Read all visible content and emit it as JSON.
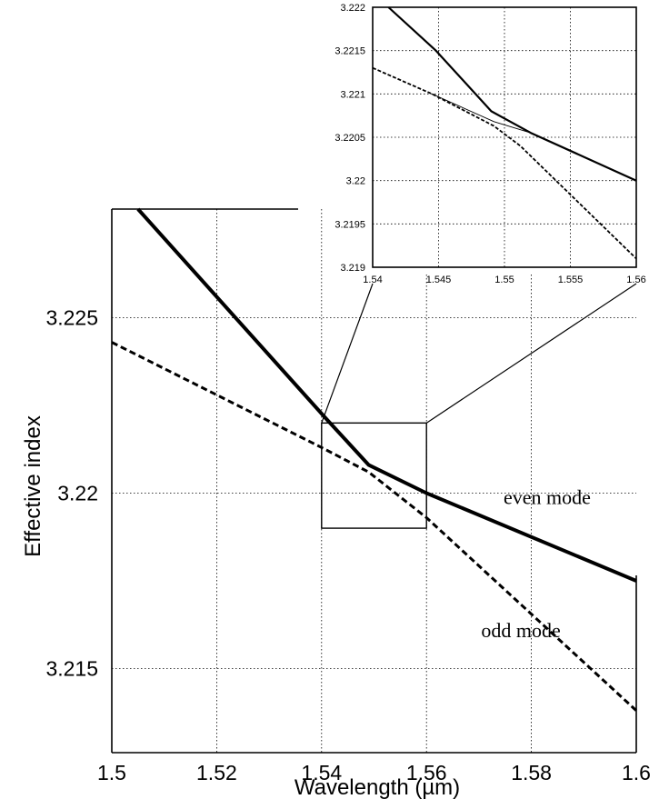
{
  "chart_data": [
    {
      "type": "line",
      "title": "",
      "xlabel": "Wavelength (µm)",
      "ylabel": "Effective index",
      "xlim": [
        1.5,
        1.6
      ],
      "ylim": [
        3.2126,
        3.2281
      ],
      "x_ticks": [
        "1.5",
        "1.52",
        "1.54",
        "1.56",
        "1.58",
        "1.6"
      ],
      "y_ticks": [
        "3.215",
        "3.22",
        "3.225"
      ],
      "grid": true,
      "series": [
        {
          "name": "even mode",
          "style": "solid",
          "color": "#000000",
          "x": [
            1.505,
            1.541,
            1.549,
            1.56,
            1.6
          ],
          "y": [
            3.2281,
            3.2221,
            3.2208,
            3.22,
            3.2175
          ]
        },
        {
          "name": "odd mode",
          "style": "dashed",
          "color": "#000000",
          "x": [
            1.5,
            1.54,
            1.549,
            1.56,
            1.6
          ],
          "y": [
            3.2243,
            3.2213,
            3.2206,
            3.2193,
            3.2138
          ]
        }
      ],
      "annotations": [
        {
          "text": "even mode",
          "x": 1.583,
          "y": 3.2199
        },
        {
          "text": "odd mode",
          "x": 1.578,
          "y": 3.2161
        }
      ],
      "zoom_box": {
        "x": [
          1.54,
          1.56
        ],
        "y": [
          3.219,
          3.222
        ]
      }
    },
    {
      "type": "line",
      "title": "",
      "xlabel": "",
      "ylabel": "",
      "xlim": [
        1.54,
        1.56
      ],
      "ylim": [
        3.219,
        3.222
      ],
      "x_ticks": [
        "1.54",
        "1.545",
        "1.55",
        "1.555",
        "1.56"
      ],
      "y_ticks": [
        "3.219",
        "3.2195",
        "3.22",
        "3.2205",
        "3.221",
        "3.2215",
        "3.222"
      ],
      "grid": true,
      "series": [
        {
          "name": "even mode",
          "style": "solid",
          "color": "#000000",
          "x": [
            1.5412,
            1.5448,
            1.549,
            1.552,
            1.56
          ],
          "y": [
            3.222,
            3.2215,
            3.2208,
            3.22055,
            3.22
          ]
        },
        {
          "name": "odd mode",
          "style": "dashed",
          "color": "#000000",
          "x": [
            1.54,
            1.5445,
            1.5492,
            1.5512,
            1.56
          ],
          "y": [
            3.2213,
            3.221,
            3.22063,
            3.2204,
            3.2191
          ]
        },
        {
          "name": "",
          "style": "thin",
          "color": "#000000",
          "x": [
            1.5445,
            1.5492,
            1.552
          ],
          "y": [
            3.221,
            3.22068,
            3.22055
          ]
        }
      ]
    }
  ]
}
